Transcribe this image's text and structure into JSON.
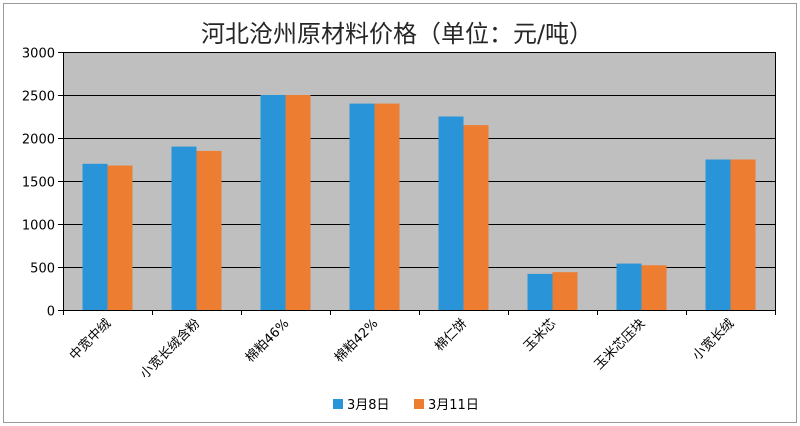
{
  "chart_data": {
    "type": "bar",
    "title": "河北沧州原材料价格（单位：元/吨）",
    "categories": [
      "中宽中绒",
      "小宽长绒含粉",
      "棉粕46%",
      "棉粕42%",
      "棉仁饼",
      "玉米芯",
      "玉米芯压块",
      "小宽长绒"
    ],
    "series": [
      {
        "name": "3月8日",
        "color": "#2A94D8",
        "values": [
          1700,
          1900,
          2500,
          2400,
          2250,
          420,
          540,
          1750
        ]
      },
      {
        "name": "3月11日",
        "color": "#ED7D31",
        "values": [
          1680,
          1850,
          2500,
          2400,
          2150,
          440,
          520,
          1750
        ]
      }
    ],
    "ylim": [
      0,
      3000
    ],
    "yticks": [
      0,
      500,
      1000,
      1500,
      2000,
      2500,
      3000
    ],
    "grid": true,
    "legend": "bottom",
    "plot_background": "#BFBFBF"
  }
}
